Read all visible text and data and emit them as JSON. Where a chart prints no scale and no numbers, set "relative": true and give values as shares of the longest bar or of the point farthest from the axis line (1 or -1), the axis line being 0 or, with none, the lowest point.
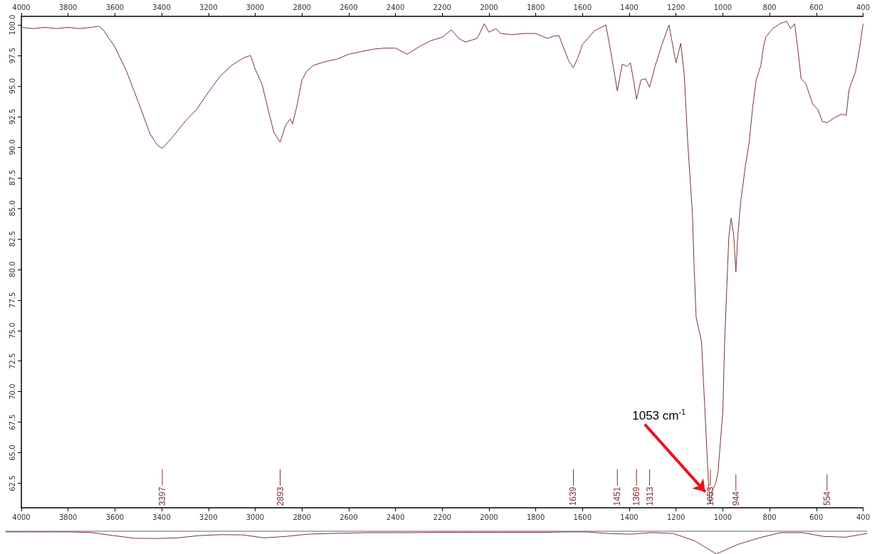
{
  "chart_data": [
    {
      "type": "line",
      "color": "#7a3434",
      "x": [
        4000,
        3950,
        3900,
        3850,
        3800,
        3750,
        3700,
        3670,
        3650,
        3600,
        3550,
        3500,
        3450,
        3420,
        3397,
        3350,
        3300,
        3250,
        3200,
        3150,
        3100,
        3050,
        3020,
        3000,
        2970,
        2950,
        2920,
        2893,
        2870,
        2850,
        2840,
        2820,
        2800,
        2780,
        2750,
        2700,
        2650,
        2600,
        2550,
        2500,
        2450,
        2400,
        2350,
        2300,
        2250,
        2200,
        2160,
        2130,
        2100,
        2050,
        2020,
        2000,
        1970,
        1950,
        1900,
        1850,
        1800,
        1750,
        1720,
        1700,
        1680,
        1660,
        1639,
        1620,
        1600,
        1550,
        1500,
        1480,
        1451,
        1430,
        1410,
        1395,
        1380,
        1369,
        1350,
        1330,
        1313,
        1290,
        1260,
        1230,
        1210,
        1200,
        1180,
        1165,
        1150,
        1130,
        1122,
        1114,
        1091,
        1081,
        1071,
        1061,
        1056,
        1053,
        1045,
        1030,
        1020,
        1000,
        992,
        980,
        974,
        964,
        953,
        944,
        936,
        923,
        903,
        887,
        872,
        857,
        837,
        826,
        816,
        786,
        755,
        727,
        710,
        693,
        680,
        665,
        645,
        615,
        594,
        574,
        554,
        523,
        492,
        472,
        460,
        432,
        414,
        400
      ],
      "values": [
        99.8,
        99.7,
        99.8,
        99.7,
        99.8,
        99.7,
        99.8,
        99.9,
        99.6,
        98.2,
        96.2,
        93.7,
        91.1,
        90.2,
        89.9,
        90.9,
        92.1,
        93.1,
        94.5,
        95.8,
        96.7,
        97.3,
        97.5,
        96.4,
        95.1,
        93.5,
        91.2,
        90.4,
        91.8,
        92.3,
        91.9,
        93.5,
        95.5,
        96.2,
        96.7,
        97.0,
        97.2,
        97.6,
        97.8,
        98.0,
        98.1,
        98.1,
        97.6,
        98.2,
        98.7,
        99.0,
        99.6,
        98.9,
        98.6,
        98.9,
        100.1,
        99.4,
        99.7,
        99.3,
        99.2,
        99.3,
        99.3,
        98.9,
        99.1,
        99.1,
        98.1,
        97.1,
        96.5,
        97.3,
        98.4,
        99.5,
        100.0,
        97.9,
        94.6,
        96.8,
        96.6,
        96.9,
        95.3,
        93.9,
        95.5,
        95.6,
        94.9,
        96.6,
        98.4,
        100.0,
        97.9,
        96.9,
        98.5,
        96.0,
        90.4,
        84.6,
        79.9,
        76.1,
        74.1,
        70.2,
        66.4,
        62.5,
        60.9,
        60.8,
        61.9,
        62.5,
        63.5,
        68.3,
        74.1,
        79.9,
        82.7,
        84.2,
        82.7,
        79.8,
        82.7,
        85.6,
        88.5,
        90.4,
        93.3,
        95.5,
        96.7,
        98.2,
        99.0,
        99.7,
        100.1,
        100.3,
        99.7,
        100.1,
        98.2,
        95.6,
        95.2,
        93.5,
        93.1,
        92.1,
        92.0,
        92.4,
        92.7,
        92.6,
        94.7,
        96.2,
        98.2,
        100.1
      ],
      "xlim": [
        4000,
        400
      ],
      "xticks": [
        4000,
        3800,
        3600,
        3400,
        3200,
        3000,
        2800,
        2600,
        2400,
        2200,
        2000,
        1800,
        1600,
        1400,
        1200,
        1000,
        800,
        600,
        400
      ],
      "x2lim": [
        4000,
        400
      ],
      "x2ticks": [
        4000,
        3800,
        3600,
        3400,
        3200,
        3000,
        2800,
        2600,
        2400,
        2200,
        2000,
        1800,
        1600,
        1400,
        1200,
        1000,
        800,
        600,
        400
      ],
      "ylim": [
        60.5,
        100.7
      ],
      "yticks": [
        62.5,
        {
          "value": 65,
          "label": "65.0"
        },
        67.5,
        {
          "value": 70,
          "label": "70.0"
        },
        72.5,
        {
          "value": 75,
          "label": "75.0"
        },
        77.5,
        {
          "value": 80,
          "label": "80.0"
        },
        82.5,
        {
          "value": 85,
          "label": "85.0"
        },
        87.5,
        {
          "value": 90,
          "label": "90.0"
        },
        92.5,
        {
          "value": 95,
          "label": "95.0"
        },
        97.5,
        {
          "value": 100,
          "label": "100.0"
        }
      ],
      "grid": false,
      "marker": "none",
      "line_style": "solid",
      "annotations": [
        {
          "text": "3397",
          "x": 3397
        },
        {
          "text": "2893",
          "x": 2893
        },
        {
          "text": "1639",
          "x": 1639
        },
        {
          "text": "1451",
          "x": 1451
        },
        {
          "text": "1369",
          "x": 1369
        },
        {
          "text": "1313",
          "x": 1313
        },
        {
          "text": "1053",
          "x": 1053
        },
        {
          "text": "944",
          "x": 944
        },
        {
          "text": "554",
          "x": 554
        },
        {
          "text": "1053 cm$^{-1}$",
          "x": 1075,
          "y": 61.8
        }
      ]
    },
    {
      "type": "line",
      "color": "#7a3434",
      "relative": true,
      "marker": "none",
      "categories": [
        null,
        null,
        null,
        null,
        null,
        null,
        null,
        null,
        null,
        null,
        null,
        null,
        null,
        null,
        null,
        null,
        null,
        null,
        null,
        null,
        null,
        null,
        null,
        null,
        null,
        null,
        null,
        null,
        null,
        null,
        null,
        null,
        null,
        null,
        null,
        null,
        null,
        null,
        null,
        null,
        null
      ],
      "values": [
        -0.03,
        -0.03,
        -0.03,
        -0.03,
        -0.06,
        -0.19,
        -0.31,
        -0.32,
        -0.29,
        -0.19,
        -0.15,
        -0.16,
        -0.29,
        -0.23,
        -0.13,
        -0.1,
        -0.08,
        -0.06,
        -0.06,
        -0.06,
        -0.05,
        -0.05,
        -0.05,
        -0.05,
        -0.05,
        -0.05,
        -0.03,
        -0.03,
        -0.1,
        -0.13,
        -0.06,
        -0.1,
        -0.42,
        -1,
        -0.58,
        -0.29,
        -0.06,
        -0.06,
        -0.23,
        -0.26,
        -0.1
      ]
    }
  ]
}
